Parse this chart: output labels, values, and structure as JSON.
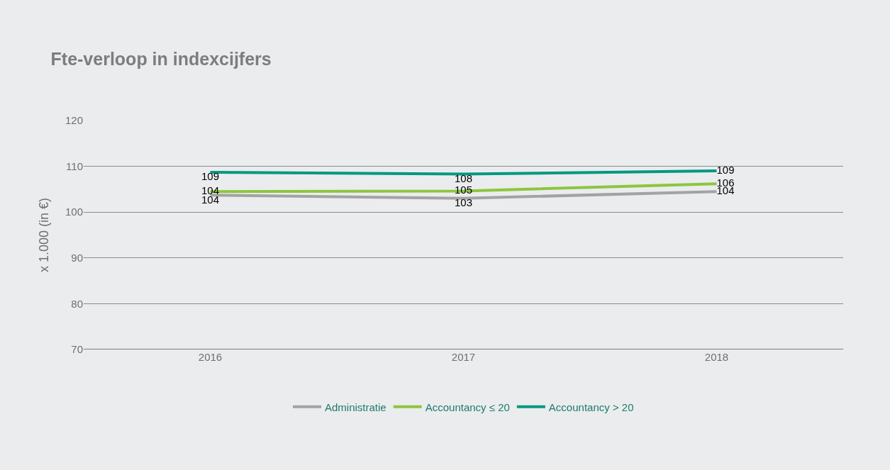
{
  "chart_data": {
    "type": "line",
    "title": "Fte-verloop in indexcijfers",
    "ylabel": "x 1.000 (in €)",
    "categories": [
      "2016",
      "2017",
      "2018"
    ],
    "series": [
      {
        "name": "Administratie",
        "color": "#a3a3a6",
        "values": [
          103.7,
          103,
          104.5
        ],
        "value_labels": [
          "104",
          "103",
          "104"
        ]
      },
      {
        "name": "Accountancy ≤ 20",
        "color": "#8cc63e",
        "values": [
          104.5,
          104.6,
          106.2
        ],
        "value_labels": [
          "104",
          "105",
          "106"
        ]
      },
      {
        "name": "Accountancy > 20",
        "color": "#00997f",
        "values": [
          108.7,
          108.3,
          109
        ],
        "value_labels": [
          "109",
          "108",
          "109"
        ]
      }
    ],
    "ylim": [
      70,
      120
    ],
    "yticks": [
      70,
      80,
      90,
      100,
      110,
      120
    ],
    "grid": "y",
    "legend": "bottom",
    "marker": "none",
    "line_style": "solid"
  }
}
